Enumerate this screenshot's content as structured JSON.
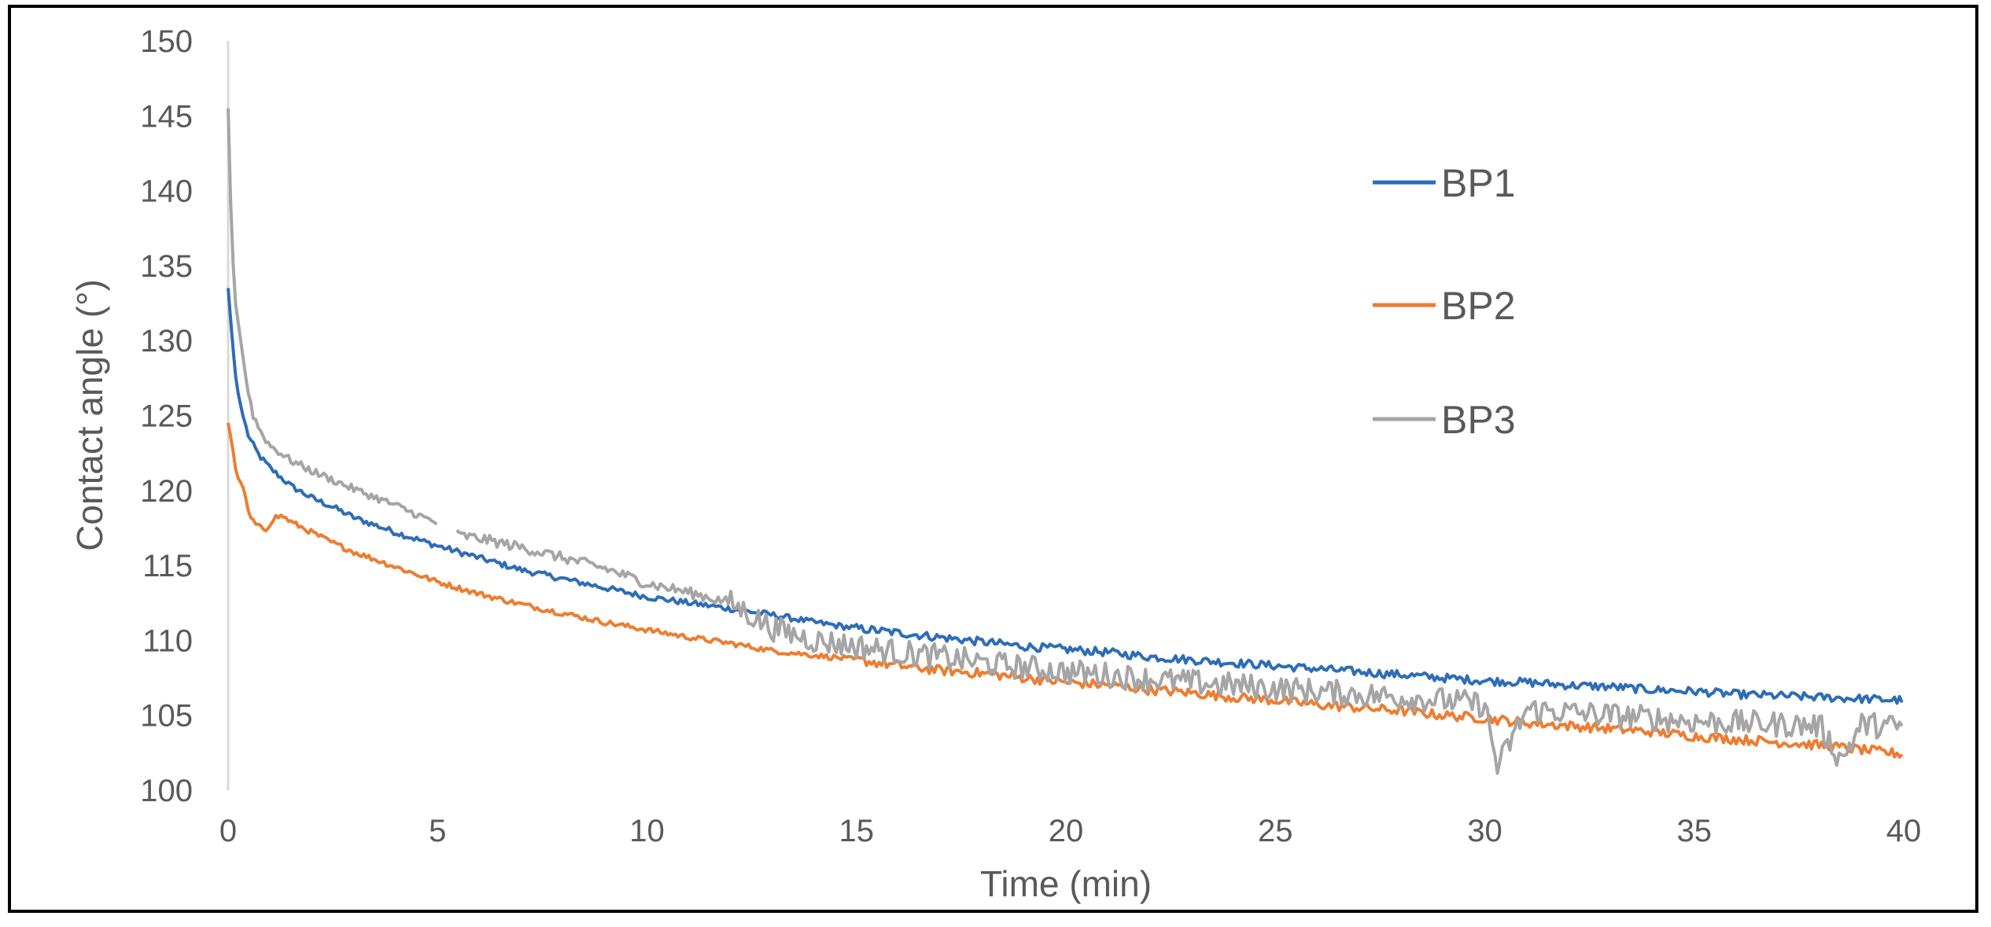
{
  "chart_data": {
    "type": "line",
    "title": "",
    "xlabel": "Time (min)",
    "ylabel": "Contact angle (°)",
    "xlim": [
      0,
      40
    ],
    "ylim": [
      100,
      150
    ],
    "xticks": [
      "0",
      "5",
      "10",
      "15",
      "20",
      "25",
      "30",
      "35",
      "40"
    ],
    "yticks": [
      "100",
      "105",
      "110",
      "115",
      "120",
      "125",
      "130",
      "135",
      "140",
      "145",
      "150"
    ],
    "grid": false,
    "legend_position": "right",
    "series": [
      {
        "name": "BP1",
        "color": "#2E6DB7",
        "x": [
          0,
          0.1,
          0.2,
          0.35,
          0.5,
          0.75,
          1,
          1.5,
          2,
          2.5,
          3,
          4,
          5,
          6,
          7,
          8,
          9,
          10,
          11,
          12,
          13,
          14,
          15,
          16,
          17,
          18,
          19,
          20,
          21,
          22,
          23,
          24,
          25,
          26,
          27,
          28,
          29,
          30,
          31,
          32,
          33,
          34,
          35,
          36,
          37,
          38,
          39,
          40
        ],
        "y": [
          133.5,
          130,
          127,
          125,
          123.5,
          122.3,
          121.5,
          120.3,
          119.5,
          118.9,
          118.2,
          117.2,
          116.3,
          115.5,
          114.7,
          114.1,
          113.5,
          112.9,
          112.5,
          112.1,
          111.7,
          111.2,
          110.8,
          110.5,
          110.2,
          109.9,
          109.6,
          109.4,
          109.2,
          108.9,
          108.7,
          108.5,
          108.3,
          108.1,
          107.9,
          107.7,
          107.5,
          107.3,
          107.2,
          107.0,
          106.9,
          106.7,
          106.6,
          106.4,
          106.3,
          106.2,
          106.1,
          106.0
        ]
      },
      {
        "name": "BP2",
        "color": "#ED7D31",
        "x": [
          0,
          0.1,
          0.2,
          0.35,
          0.5,
          0.7,
          0.9,
          1.1,
          1.3,
          1.5,
          2,
          2.5,
          3,
          4,
          5,
          6,
          7,
          8,
          9,
          10,
          11,
          12,
          13,
          14,
          15,
          16,
          17,
          18,
          19,
          20,
          21,
          22,
          23,
          24,
          25,
          26,
          27,
          28,
          29,
          30,
          31,
          32,
          33,
          34,
          35,
          36,
          37,
          38,
          39,
          40
        ],
        "y": [
          124.5,
          123,
          121,
          120.3,
          118.3,
          117.6,
          117.4,
          118.2,
          118.3,
          117.9,
          117.2,
          116.5,
          115.9,
          114.9,
          113.9,
          113.1,
          112.4,
          111.8,
          111.2,
          110.7,
          110.2,
          109.8,
          109.3,
          109.0,
          108.7,
          108.3,
          108.0,
          107.8,
          107.5,
          107.2,
          107.0,
          106.7,
          106.5,
          106.2,
          106.0,
          105.7,
          105.5,
          105.3,
          105.0,
          104.8,
          104.5,
          104.3,
          104.1,
          103.9,
          103.6,
          103.4,
          103.2,
          103.0,
          102.7,
          102.4
        ]
      },
      {
        "name": "BP3",
        "color": "#A5A5A5",
        "x": [
          0,
          0.05,
          0.15,
          0.3,
          0.45,
          0.6,
          0.8,
          1,
          1.5,
          2,
          2.5,
          3,
          4,
          5,
          5.5,
          6,
          7,
          8,
          9,
          10,
          11,
          12,
          13,
          14,
          15,
          16,
          17,
          18,
          19,
          20,
          21,
          22,
          23,
          24,
          25,
          26,
          27,
          28,
          29,
          30,
          30.3,
          31,
          32,
          33,
          34,
          35,
          36,
          37,
          38,
          38.5,
          39,
          40
        ],
        "y": [
          145.5,
          140,
          133,
          130,
          127,
          125,
          123.8,
          123.0,
          122.0,
          121.3,
          120.7,
          120.1,
          119.0,
          117.8,
          117.0,
          116.8,
          116.2,
          115.5,
          114.8,
          113.8,
          113.2,
          112.5,
          110.8,
          110.0,
          109.6,
          109.2,
          108.9,
          108.5,
          108.2,
          107.9,
          107.7,
          107.4,
          107.2,
          107.0,
          106.8,
          106.6,
          106.4,
          106.2,
          106.0,
          105.7,
          101.5,
          105.4,
          105.2,
          105.0,
          104.8,
          104.6,
          104.5,
          104.4,
          104.3,
          102.0,
          104.4,
          104.2
        ]
      }
    ]
  }
}
